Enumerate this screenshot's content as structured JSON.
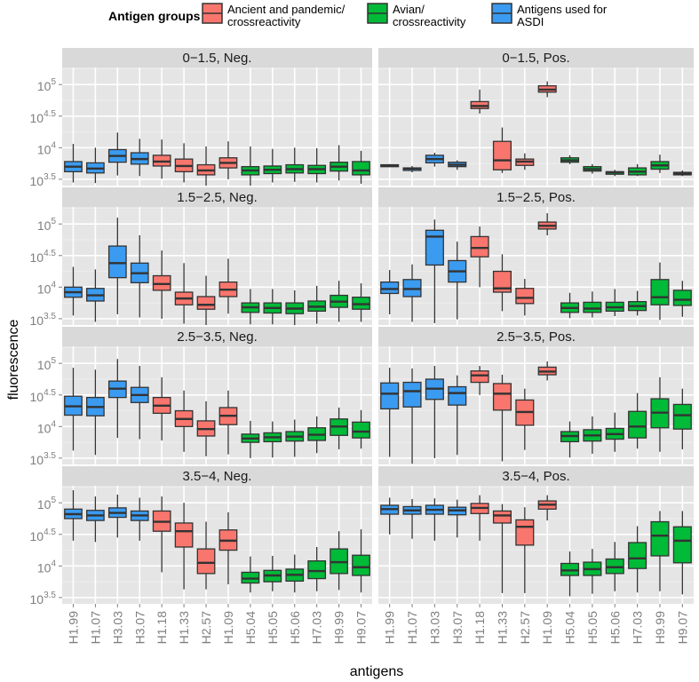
{
  "chart_data": {
    "type": "box",
    "xlabel": "antigens",
    "ylabel": "fluorescence",
    "y_scale": "log10",
    "ylim_log10": [
      3.4,
      5.27
    ],
    "y_ticks_log10": [
      3.5,
      4,
      4.5,
      5
    ],
    "y_tick_labels": [
      {
        "base": "10",
        "exp": "3.5"
      },
      {
        "base": "10",
        "exp": "4"
      },
      {
        "base": "10",
        "exp": "4.5"
      },
      {
        "base": "10",
        "exp": "5"
      }
    ],
    "categories": [
      "H1.99",
      "H1.07",
      "H3.03",
      "H3.07",
      "H1.18",
      "H1.33",
      "H2.57",
      "H1.09",
      "H5.04",
      "H5.05",
      "H5.06",
      "H7.03",
      "H9.99",
      "H9.07"
    ],
    "legend": {
      "title": "Antigen groups",
      "placement": "top",
      "groups": [
        {
          "label_lines": [
            "Ancient and pandemic/",
            "crossreactivity"
          ],
          "color": "#f8766d"
        },
        {
          "label_lines": [
            "Avian/",
            "crossreactivity"
          ],
          "color": "#00ba38"
        },
        {
          "label_lines": [
            "Antigens used for",
            "ASDI"
          ],
          "color": "#3b9bf0"
        }
      ]
    },
    "category_group": [
      2,
      2,
      2,
      2,
      0,
      0,
      0,
      0,
      1,
      1,
      1,
      1,
      1,
      1
    ],
    "panels": [
      {
        "title": "0−1.5, Neg.",
        "boxes": [
          [
            3.45,
            3.62,
            3.7,
            3.78,
            4.06
          ],
          [
            3.44,
            3.6,
            3.67,
            3.76,
            4.0
          ],
          [
            3.56,
            3.77,
            3.87,
            3.97,
            4.24
          ],
          [
            3.55,
            3.74,
            3.82,
            3.92,
            4.14
          ],
          [
            3.51,
            3.71,
            3.78,
            3.88,
            4.13
          ],
          [
            3.45,
            3.62,
            3.71,
            3.82,
            4.07
          ],
          [
            3.4,
            3.57,
            3.64,
            3.73,
            4.02
          ],
          [
            3.5,
            3.68,
            3.76,
            3.84,
            4.1
          ],
          [
            3.4,
            3.57,
            3.64,
            3.7,
            4.02
          ],
          [
            3.45,
            3.59,
            3.65,
            3.71,
            3.98
          ],
          [
            3.46,
            3.6,
            3.66,
            3.73,
            4.0
          ],
          [
            3.45,
            3.59,
            3.66,
            3.72,
            3.99
          ],
          [
            3.48,
            3.63,
            3.7,
            3.77,
            4.04
          ],
          [
            3.43,
            3.57,
            3.64,
            3.78,
            3.95
          ]
        ]
      },
      {
        "title": "0−1.5, Pos.",
        "boxes": [
          [
            3.7,
            3.7,
            3.71,
            3.73,
            3.74
          ],
          [
            3.61,
            3.64,
            3.67,
            3.68,
            3.71
          ],
          [
            3.7,
            3.76,
            3.82,
            3.88,
            3.92
          ],
          [
            3.65,
            3.7,
            3.73,
            3.77,
            3.8
          ],
          [
            4.54,
            4.62,
            4.66,
            4.73,
            4.92
          ],
          [
            3.6,
            3.65,
            3.8,
            4.1,
            4.32
          ],
          [
            3.65,
            3.72,
            3.78,
            3.82,
            3.91
          ],
          [
            4.8,
            4.88,
            4.92,
            4.98,
            5.05
          ],
          [
            3.74,
            3.77,
            3.8,
            3.84,
            3.88
          ],
          [
            3.59,
            3.63,
            3.66,
            3.7,
            3.74
          ],
          [
            3.55,
            3.58,
            3.61,
            3.62,
            3.65
          ],
          [
            3.55,
            3.57,
            3.62,
            3.68,
            3.74
          ],
          [
            3.6,
            3.66,
            3.72,
            3.78,
            3.89
          ],
          [
            3.55,
            3.57,
            3.59,
            3.61,
            3.64
          ]
        ]
      },
      {
        "title": "1.5−2.5, Neg.",
        "boxes": [
          [
            3.55,
            3.84,
            3.92,
            4.0,
            4.32
          ],
          [
            3.45,
            3.78,
            3.87,
            3.98,
            4.28
          ],
          [
            3.57,
            4.15,
            4.38,
            4.65,
            5.1
          ],
          [
            3.52,
            4.07,
            4.22,
            4.38,
            4.82
          ],
          [
            3.5,
            3.95,
            4.05,
            4.18,
            4.58
          ],
          [
            3.42,
            3.72,
            3.82,
            3.92,
            4.38
          ],
          [
            3.4,
            3.65,
            3.72,
            3.85,
            4.18
          ],
          [
            3.58,
            3.85,
            3.96,
            4.08,
            4.45
          ],
          [
            3.41,
            3.6,
            3.68,
            3.75,
            3.97
          ],
          [
            3.41,
            3.59,
            3.67,
            3.75,
            3.97
          ],
          [
            3.4,
            3.58,
            3.66,
            3.75,
            3.95
          ],
          [
            3.42,
            3.62,
            3.69,
            3.78,
            4.02
          ],
          [
            3.45,
            3.68,
            3.77,
            3.87,
            4.1
          ],
          [
            3.45,
            3.65,
            3.73,
            3.84,
            4.06
          ]
        ]
      },
      {
        "title": "1.5−2.5, Pos.",
        "boxes": [
          [
            3.57,
            3.9,
            3.97,
            4.08,
            4.27
          ],
          [
            3.45,
            3.85,
            3.97,
            4.12,
            4.36
          ],
          [
            3.43,
            4.35,
            4.8,
            4.9,
            5.07
          ],
          [
            3.49,
            4.08,
            4.25,
            4.42,
            4.72
          ],
          [
            4.0,
            4.48,
            4.62,
            4.8,
            4.96
          ],
          [
            3.62,
            3.92,
            3.98,
            4.25,
            4.52
          ],
          [
            3.55,
            3.74,
            3.83,
            3.98,
            4.13
          ],
          [
            4.82,
            4.92,
            4.97,
            5.03,
            5.17
          ],
          [
            3.51,
            3.6,
            3.67,
            3.75,
            3.91
          ],
          [
            3.52,
            3.6,
            3.66,
            3.76,
            3.93
          ],
          [
            3.54,
            3.62,
            3.68,
            3.76,
            3.97
          ],
          [
            3.55,
            3.63,
            3.7,
            3.77,
            3.94
          ],
          [
            3.48,
            3.72,
            3.84,
            4.12,
            4.39
          ],
          [
            3.53,
            3.71,
            3.8,
            3.95,
            4.1
          ]
        ]
      },
      {
        "title": "2.5−3.5, Neg.",
        "boxes": [
          [
            3.62,
            4.18,
            4.32,
            4.48,
            4.93
          ],
          [
            3.55,
            4.17,
            4.31,
            4.46,
            4.9
          ],
          [
            3.82,
            4.46,
            4.6,
            4.72,
            5.07
          ],
          [
            3.8,
            4.38,
            4.5,
            4.62,
            4.96
          ],
          [
            3.78,
            4.21,
            4.33,
            4.46,
            4.78
          ],
          [
            3.6,
            4.0,
            4.12,
            4.25,
            4.57
          ],
          [
            3.53,
            3.85,
            3.96,
            4.09,
            4.4
          ],
          [
            3.56,
            4.03,
            4.17,
            4.3,
            4.57
          ],
          [
            3.5,
            3.75,
            3.81,
            3.88,
            4.09
          ],
          [
            3.51,
            3.76,
            3.83,
            3.9,
            4.08
          ],
          [
            3.52,
            3.77,
            3.84,
            3.92,
            4.11
          ],
          [
            3.58,
            3.78,
            3.87,
            3.98,
            4.16
          ],
          [
            3.64,
            3.86,
            4.0,
            4.12,
            4.3
          ],
          [
            3.65,
            3.82,
            3.92,
            4.07,
            4.26
          ]
        ]
      },
      {
        "title": "2.5−3.5, Pos.",
        "boxes": [
          [
            3.52,
            4.28,
            4.52,
            4.69,
            4.93
          ],
          [
            3.41,
            4.31,
            4.56,
            4.7,
            4.92
          ],
          [
            3.5,
            4.43,
            4.6,
            4.75,
            4.96
          ],
          [
            3.55,
            4.34,
            4.53,
            4.63,
            4.81
          ],
          [
            4.5,
            4.7,
            4.81,
            4.88,
            4.96
          ],
          [
            3.45,
            4.26,
            4.52,
            4.68,
            4.82
          ],
          [
            3.63,
            4.02,
            4.23,
            4.42,
            4.6
          ],
          [
            4.73,
            4.82,
            4.87,
            4.94,
            5.03
          ],
          [
            3.51,
            3.76,
            3.85,
            3.92,
            4.08
          ],
          [
            3.57,
            3.77,
            3.86,
            3.95,
            4.16
          ],
          [
            3.6,
            3.8,
            3.88,
            3.97,
            4.22
          ],
          [
            3.65,
            3.82,
            4.0,
            4.24,
            4.53
          ],
          [
            3.6,
            3.98,
            4.22,
            4.44,
            4.78
          ],
          [
            3.64,
            3.96,
            4.18,
            4.35,
            4.6
          ]
        ]
      },
      {
        "title": "3.5−4, Neg.",
        "boxes": [
          [
            4.4,
            4.75,
            4.82,
            4.9,
            5.2
          ],
          [
            4.38,
            4.72,
            4.8,
            4.88,
            5.1
          ],
          [
            4.45,
            4.77,
            4.84,
            4.92,
            5.13
          ],
          [
            4.4,
            4.72,
            4.8,
            4.87,
            5.08
          ],
          [
            3.9,
            4.55,
            4.7,
            4.87,
            5.1
          ],
          [
            3.63,
            4.3,
            4.55,
            4.68,
            5.0
          ],
          [
            3.63,
            3.88,
            4.05,
            4.27,
            4.7
          ],
          [
            3.71,
            4.25,
            4.4,
            4.57,
            4.85
          ],
          [
            3.58,
            3.73,
            3.8,
            3.9,
            4.15
          ],
          [
            3.6,
            3.75,
            3.85,
            3.93,
            4.16
          ],
          [
            3.58,
            3.76,
            3.86,
            3.95,
            4.18
          ],
          [
            3.6,
            3.8,
            3.92,
            4.08,
            4.3
          ],
          [
            3.62,
            3.88,
            4.06,
            4.27,
            4.55
          ],
          [
            3.58,
            3.85,
            3.98,
            4.17,
            4.58
          ]
        ]
      },
      {
        "title": "3.5−4, Pos.",
        "boxes": [
          [
            4.5,
            4.82,
            4.9,
            4.96,
            5.08
          ],
          [
            4.43,
            4.82,
            4.88,
            4.94,
            5.06
          ],
          [
            4.4,
            4.82,
            4.89,
            4.96,
            5.07
          ],
          [
            4.45,
            4.81,
            4.88,
            4.93,
            5.05
          ],
          [
            4.4,
            4.83,
            4.92,
            4.99,
            5.12
          ],
          [
            3.57,
            4.68,
            4.8,
            4.87,
            4.98
          ],
          [
            3.57,
            4.33,
            4.62,
            4.73,
            4.93
          ],
          [
            4.72,
            4.9,
            4.97,
            5.03,
            5.12
          ],
          [
            3.52,
            3.85,
            3.93,
            4.04,
            4.23
          ],
          [
            3.56,
            3.85,
            3.95,
            4.06,
            4.27
          ],
          [
            3.6,
            3.88,
            3.98,
            4.11,
            4.38
          ],
          [
            3.58,
            3.96,
            4.12,
            4.37,
            4.63
          ],
          [
            3.6,
            4.16,
            4.48,
            4.7,
            4.87
          ],
          [
            3.55,
            4.05,
            4.4,
            4.62,
            4.87
          ]
        ]
      }
    ]
  }
}
